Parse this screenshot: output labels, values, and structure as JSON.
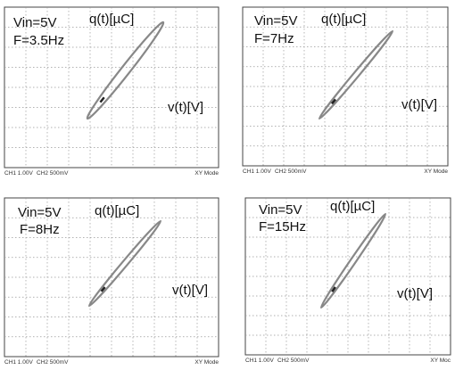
{
  "panels": [
    {
      "vin": "Vin=5V",
      "freq": "F=3.5Hz",
      "y_label": "q(t)[µC]",
      "x_label": "v(t)[V]",
      "footer": {
        "ch1": "CH1  1.00V",
        "ch2": "CH2  500mV",
        "mode": "XY Mode"
      }
    },
    {
      "vin": "Vin=5V",
      "freq": "F=7Hz",
      "y_label": "q(t)[µC]",
      "x_label": "v(t)[V]",
      "footer": {
        "ch1": "CH1  1.00V",
        "ch2": "CH2  500mV",
        "mode": "XY Mode"
      }
    },
    {
      "vin": "Vin=5V",
      "freq": "F=8Hz",
      "y_label": "q(t)[µC]",
      "x_label": "v(t)[V]",
      "footer": {
        "ch1": "CH1  1.00V",
        "ch2": "CH2  500mV",
        "mode": "XY Mode"
      }
    },
    {
      "vin": "Vin=5V",
      "freq": "F=15Hz",
      "y_label": "q(t)[µC]",
      "x_label": "v(t)[V]",
      "footer": {
        "ch1": "CH1  1.00V",
        "ch2": "CH2  500mV",
        "mode": "XY Moc"
      }
    }
  ]
}
